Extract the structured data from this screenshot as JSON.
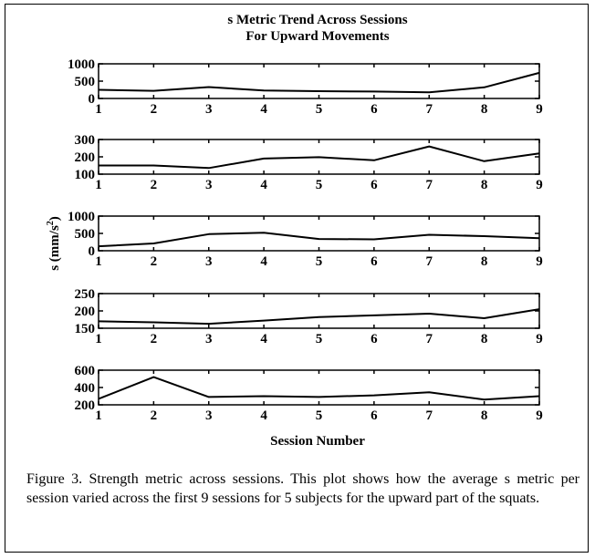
{
  "chart_data": {
    "type": "line",
    "title": "s Metric Trend Across Sessions",
    "subtitle": "For Upward Movements",
    "xlabel": "Session Number",
    "ylabel_main": "s (mm/s",
    "ylabel_sup": "2",
    "ylabel_close": ")",
    "x": [
      1,
      2,
      3,
      4,
      5,
      6,
      7,
      8,
      9
    ],
    "panels": [
      {
        "ylim": [
          0,
          1000
        ],
        "yticks": [
          0,
          500,
          1000
        ],
        "values": [
          250,
          220,
          330,
          230,
          210,
          200,
          175,
          320,
          740
        ]
      },
      {
        "ylim": [
          100,
          300
        ],
        "yticks": [
          100,
          200,
          300
        ],
        "values": [
          150,
          150,
          135,
          190,
          198,
          180,
          260,
          175,
          220
        ]
      },
      {
        "ylim": [
          0,
          1000
        ],
        "yticks": [
          0,
          500,
          1000
        ],
        "values": [
          130,
          210,
          480,
          520,
          340,
          330,
          460,
          420,
          360
        ]
      },
      {
        "ylim": [
          150,
          250
        ],
        "yticks": [
          150,
          200,
          250
        ],
        "values": [
          170,
          167,
          163,
          172,
          182,
          187,
          192,
          179,
          205
        ]
      },
      {
        "ylim": [
          200,
          600
        ],
        "yticks": [
          200,
          400,
          600
        ],
        "values": [
          270,
          520,
          290,
          300,
          290,
          310,
          345,
          260,
          300
        ]
      }
    ],
    "line_color": "#000000",
    "grid": false
  },
  "caption": "Figure 3.  Strength metric across sessions.  This plot shows how the average s metric per session varied across the first 9 sessions for 5 subjects for the upward part of the squats."
}
